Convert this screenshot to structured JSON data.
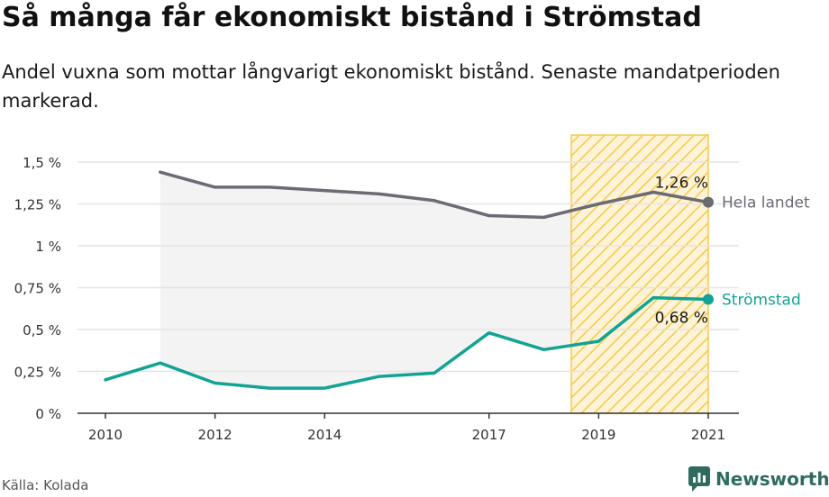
{
  "title": "Så många får ekonomiskt bistånd i Strömstad",
  "subtitle": "Andel vuxna som mottar långvarigt ekonomiskt bistånd. Senaste mandatperioden markerad.",
  "source": "Källa: Kolada",
  "brand": "Newsworthy",
  "colors": {
    "hela_landet": "#6b6b73",
    "stromstad": "#12a394",
    "highlight": "#f6c94a",
    "grid": "#e4e4e4",
    "band": "#f3f3f3"
  },
  "chart_data": {
    "type": "line",
    "x_ticks": [
      "2010",
      "2012",
      "2014",
      "2017",
      "2019",
      "2021"
    ],
    "y_ticks": [
      "0 %",
      "0,25 %",
      "0,5 %",
      "0,75 %",
      "1 %",
      "1,25 %",
      "1,5 %"
    ],
    "xlim": [
      2010,
      2021
    ],
    "ylim": [
      0,
      1.5
    ],
    "highlight_range": [
      2018.5,
      2021
    ],
    "series": [
      {
        "name": "Hela landet",
        "x": [
          2011,
          2012,
          2013,
          2014,
          2015,
          2016,
          2017,
          2018,
          2019,
          2020,
          2021
        ],
        "values": [
          1.44,
          1.35,
          1.35,
          1.33,
          1.31,
          1.27,
          1.18,
          1.17,
          1.25,
          1.32,
          1.26
        ],
        "end_label": "1,26 %"
      },
      {
        "name": "Strömstad",
        "x": [
          2010,
          2011,
          2012,
          2013,
          2014,
          2015,
          2016,
          2017,
          2018,
          2019,
          2020,
          2021
        ],
        "values": [
          0.2,
          0.3,
          0.18,
          0.15,
          0.15,
          0.22,
          0.24,
          0.48,
          0.38,
          0.43,
          0.69,
          0.68
        ],
        "end_label": "0,68 %"
      }
    ]
  }
}
